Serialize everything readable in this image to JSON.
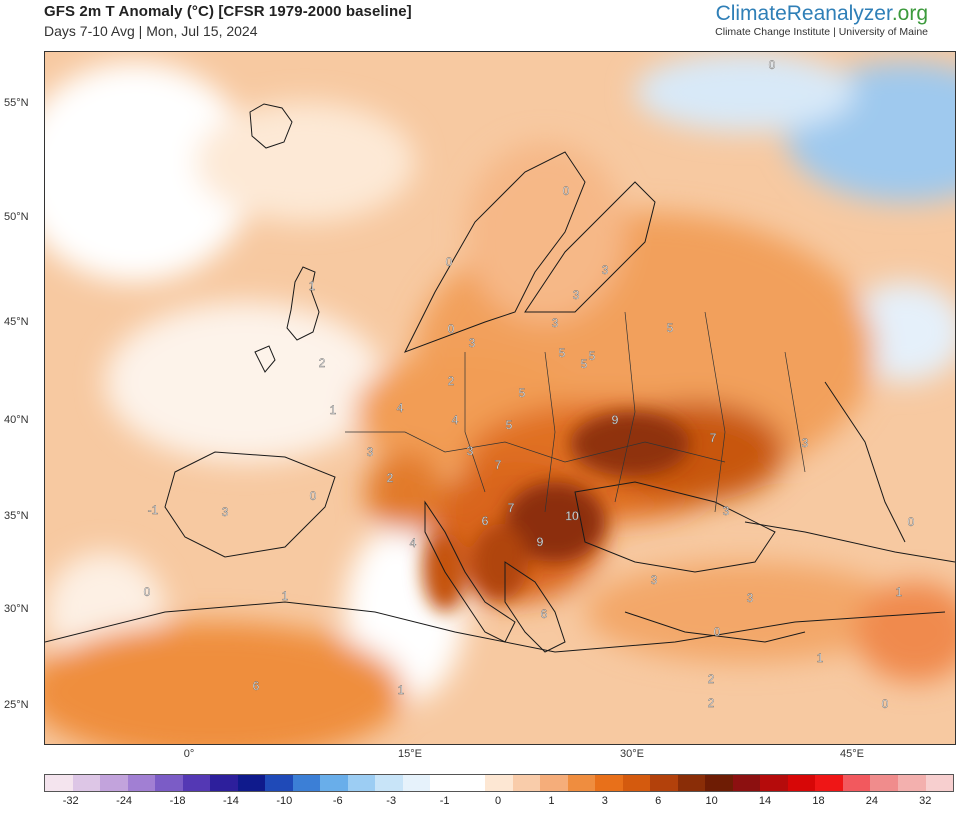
{
  "header": {
    "title": "GFS 2m T Anomaly (°C) [CFSR 1979-2000 baseline]",
    "subtitle": "Days 7-10 Avg | Mon, Jul 15, 2024"
  },
  "brand": {
    "name_main": "ClimateReanalyzer",
    "name_tld": ".org",
    "sub": "Climate Change Institute | University of Maine"
  },
  "axes": {
    "lat_labels": [
      "55°N",
      "50°N",
      "45°N",
      "40°N",
      "35°N",
      "30°N",
      "25°N"
    ],
    "lon_labels": [
      "0°",
      "15°E",
      "30°E",
      "45°E"
    ]
  },
  "contour_labels": [
    "0",
    "0",
    "0",
    "0",
    "1",
    "1",
    "3",
    "3",
    "3",
    "3",
    "2",
    "2",
    "2",
    "4",
    "4",
    "5",
    "5",
    "5",
    "5",
    "5",
    "5",
    "3",
    "3",
    "4",
    "9",
    "7",
    "7",
    "6",
    "7",
    "10",
    "9",
    "6",
    "3",
    "3",
    "0",
    "1",
    "1",
    "1",
    "0",
    "6",
    "1",
    "3",
    "2",
    "2",
    "0",
    "3",
    "-1",
    "3",
    "0",
    "0"
  ],
  "colorbar": {
    "labels": [
      "-32",
      "-24",
      "-18",
      "-14",
      "-10",
      "-6",
      "-3",
      "-1",
      "0",
      "1",
      "3",
      "6",
      "10",
      "14",
      "18",
      "24",
      "32"
    ],
    "colors": [
      "#f4e4ee",
      "#ddc6e6",
      "#c2a3dc",
      "#a17fd3",
      "#7b5cc6",
      "#5438b4",
      "#2d1f9c",
      "#0f1a8c",
      "#1f4ab8",
      "#3c7fd6",
      "#69aeea",
      "#9ccdf3",
      "#c8e4f8",
      "#e6f2fb",
      "#ffffff",
      "#ffffff",
      "#fde7d3",
      "#f9ccaa",
      "#f5ad7a",
      "#ef8d3f",
      "#e8701a",
      "#d45a0e",
      "#b3410b",
      "#8a2d07",
      "#6e1c04",
      "#8c1010",
      "#b50b0b",
      "#d70707",
      "#ef1616",
      "#f2595e",
      "#f08c8c",
      "#f3b0ae",
      "#f7cfcf"
    ]
  }
}
